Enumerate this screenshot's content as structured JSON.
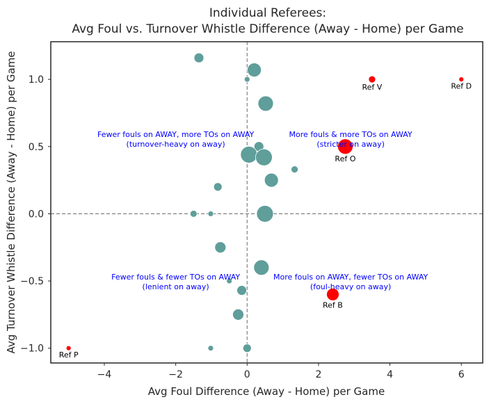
{
  "chart_data": {
    "type": "scatter",
    "title_lines": [
      "Individual Referees:",
      "Avg Foul vs. Turnover Whistle Difference (Away - Home) per Game"
    ],
    "xlabel": "Avg Foul Difference (Away - Home) per Game",
    "ylabel": "Avg Turnover Whistle Difference (Away - Home) per Game",
    "xlim": [
      -5.5,
      6.6
    ],
    "ylim": [
      -1.11,
      1.28
    ],
    "xticks": [
      -4,
      -2,
      0,
      2,
      4,
      6
    ],
    "yticks": [
      -1.0,
      -0.5,
      0.0,
      0.5,
      1.0
    ],
    "xtick_labels": [
      "−4",
      "−2",
      "0",
      "2",
      "4",
      "6"
    ],
    "ytick_labels": [
      "−1.0",
      "−0.5",
      "0.0",
      "0.5",
      "1.0"
    ],
    "grid": false,
    "reference_lines": {
      "x": 0,
      "y": 0,
      "style": "dashed",
      "color": "#777777"
    },
    "colors": {
      "normal": "#5f9e9a",
      "highlight": "#ff0000",
      "annotation": "#0000ff",
      "axis": "#262626"
    },
    "quadrant_annotations": [
      {
        "lines": [
          "Fewer fouls on AWAY, more TOs on AWAY",
          "(turnover-heavy on away)"
        ],
        "x": -2.0,
        "y": 0.57
      },
      {
        "lines": [
          "More fouls & more TOs on AWAY",
          "(stricter on away)"
        ],
        "x": 2.9,
        "y": 0.57
      },
      {
        "lines": [
          "Fewer fouls & fewer TOs on AWAY",
          "(lenient on away)"
        ],
        "x": -2.0,
        "y": -0.49
      },
      {
        "lines": [
          "More fouls on AWAY, fewer TOs on AWAY",
          "(foul-heavy on away)"
        ],
        "x": 2.9,
        "y": -0.49
      }
    ],
    "points": [
      {
        "x": -1.35,
        "y": 1.16,
        "size": 7,
        "highlight": false
      },
      {
        "x": 0.0,
        "y": 1.0,
        "size": 4,
        "highlight": false
      },
      {
        "x": 0.2,
        "y": 1.07,
        "size": 10,
        "highlight": false
      },
      {
        "x": 0.52,
        "y": 0.82,
        "size": 11,
        "highlight": false
      },
      {
        "x": 0.33,
        "y": 0.5,
        "size": 7,
        "highlight": false
      },
      {
        "x": 0.05,
        "y": 0.44,
        "size": 12,
        "highlight": false
      },
      {
        "x": 0.47,
        "y": 0.42,
        "size": 12,
        "highlight": false
      },
      {
        "x": 1.33,
        "y": 0.33,
        "size": 5,
        "highlight": false
      },
      {
        "x": 0.68,
        "y": 0.25,
        "size": 10,
        "highlight": false
      },
      {
        "x": -0.82,
        "y": 0.2,
        "size": 6,
        "highlight": false
      },
      {
        "x": -1.5,
        "y": 0.0,
        "size": 5,
        "highlight": false
      },
      {
        "x": -1.02,
        "y": 0.0,
        "size": 4,
        "highlight": false
      },
      {
        "x": 0.5,
        "y": 0.0,
        "size": 12,
        "highlight": false
      },
      {
        "x": -0.75,
        "y": -0.25,
        "size": 8,
        "highlight": false
      },
      {
        "x": 0.4,
        "y": -0.4,
        "size": 11,
        "highlight": false
      },
      {
        "x": -0.5,
        "y": -0.5,
        "size": 4,
        "highlight": false
      },
      {
        "x": -0.15,
        "y": -0.57,
        "size": 7,
        "highlight": false
      },
      {
        "x": -0.25,
        "y": -0.75,
        "size": 8,
        "highlight": false
      },
      {
        "x": -1.02,
        "y": -1.0,
        "size": 4,
        "highlight": false
      },
      {
        "x": 0.0,
        "y": -1.0,
        "size": 6,
        "highlight": false
      },
      {
        "x": 3.5,
        "y": 1.0,
        "size": 5,
        "highlight": true,
        "label": "Ref V"
      },
      {
        "x": 6.0,
        "y": 1.0,
        "size": 3.5,
        "highlight": true,
        "label": "Ref D"
      },
      {
        "x": 2.75,
        "y": 0.5,
        "size": 11,
        "highlight": true,
        "label": "Ref O"
      },
      {
        "x": 2.4,
        "y": -0.6,
        "size": 9,
        "highlight": true,
        "label": "Ref B"
      },
      {
        "x": -5.0,
        "y": -1.0,
        "size": 3.5,
        "highlight": true,
        "label": "Ref P"
      }
    ]
  }
}
